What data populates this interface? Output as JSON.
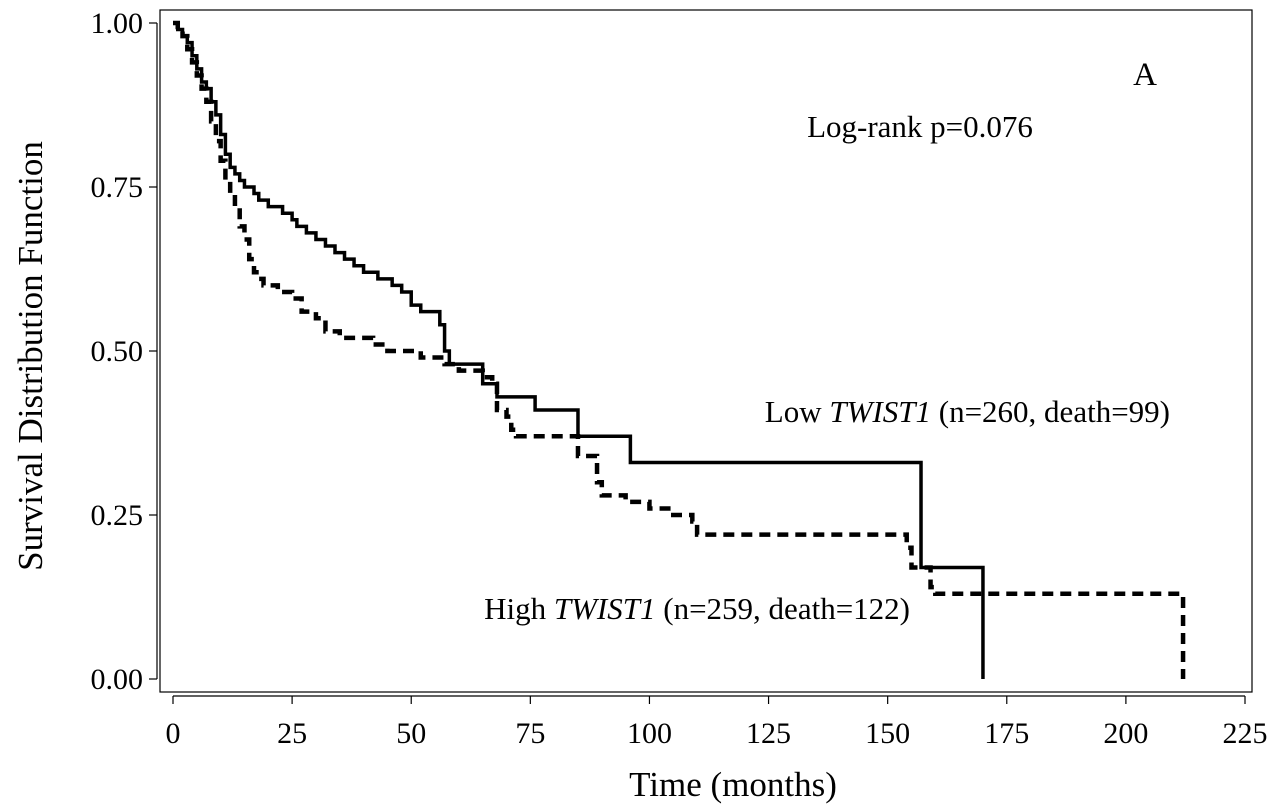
{
  "chart_data": {
    "type": "line",
    "title": "",
    "xlabel": "Time (months)",
    "ylabel": "Survival Distribution Function",
    "xlim": [
      0,
      225
    ],
    "ylim": [
      0,
      1
    ],
    "x_ticks": [
      "0",
      "25",
      "50",
      "75",
      "100",
      "125",
      "150",
      "175",
      "200",
      "225"
    ],
    "y_ticks": [
      "0.00",
      "0.25",
      "0.50",
      "0.75",
      "1.00"
    ],
    "grid": false,
    "panel_label": "A",
    "pvalue_text": "Log-rank p=0.076",
    "labels": {
      "low": {
        "prefix": "Low ",
        "gene": "TWIST1",
        "suffix": " (n=260, death=99)"
      },
      "high": {
        "prefix": "High ",
        "gene": "TWIST1",
        "suffix": " (n=259, death=122)"
      }
    },
    "series": [
      {
        "key": "low",
        "style": "solid",
        "color": "#000000",
        "x": [
          0,
          1,
          2,
          3,
          4,
          5,
          6,
          7,
          8,
          9,
          10,
          11,
          12,
          13,
          14,
          15,
          16,
          17,
          18,
          19,
          20,
          21,
          22,
          23,
          25,
          26,
          28,
          30,
          32,
          34,
          36,
          38,
          40,
          43,
          46,
          48,
          50,
          52,
          56,
          57,
          58,
          65,
          68,
          69,
          76,
          85,
          95,
          96,
          156,
          157,
          170
        ],
        "y": [
          1.0,
          0.99,
          0.98,
          0.97,
          0.95,
          0.93,
          0.91,
          0.9,
          0.88,
          0.86,
          0.83,
          0.8,
          0.78,
          0.77,
          0.76,
          0.75,
          0.75,
          0.74,
          0.73,
          0.73,
          0.72,
          0.72,
          0.72,
          0.71,
          0.7,
          0.69,
          0.68,
          0.67,
          0.66,
          0.65,
          0.64,
          0.63,
          0.62,
          0.61,
          0.6,
          0.59,
          0.57,
          0.56,
          0.54,
          0.5,
          0.48,
          0.45,
          0.43,
          0.43,
          0.41,
          0.37,
          0.37,
          0.33,
          0.33,
          0.17,
          0.0
        ]
      },
      {
        "key": "high",
        "style": "dashed",
        "color": "#000000",
        "x": [
          0,
          1,
          2,
          3,
          4,
          5,
          6,
          7,
          8,
          9,
          10,
          11,
          12,
          13,
          14,
          15,
          16,
          17,
          18,
          19,
          20,
          22,
          25,
          27,
          30,
          32,
          35,
          38,
          42,
          45,
          48,
          52,
          57,
          60,
          62,
          65,
          67,
          68,
          70,
          71,
          72,
          85,
          89,
          90,
          95,
          100,
          105,
          109,
          110,
          150,
          154,
          155,
          159,
          160,
          212
        ],
        "y": [
          1.0,
          0.99,
          0.98,
          0.96,
          0.94,
          0.92,
          0.9,
          0.88,
          0.85,
          0.82,
          0.79,
          0.76,
          0.74,
          0.72,
          0.69,
          0.67,
          0.64,
          0.62,
          0.61,
          0.6,
          0.6,
          0.59,
          0.58,
          0.56,
          0.55,
          0.53,
          0.52,
          0.52,
          0.51,
          0.5,
          0.5,
          0.49,
          0.48,
          0.47,
          0.47,
          0.46,
          0.45,
          0.41,
          0.4,
          0.38,
          0.37,
          0.34,
          0.3,
          0.28,
          0.27,
          0.26,
          0.25,
          0.24,
          0.22,
          0.22,
          0.2,
          0.17,
          0.14,
          0.13,
          0.0
        ]
      }
    ]
  }
}
